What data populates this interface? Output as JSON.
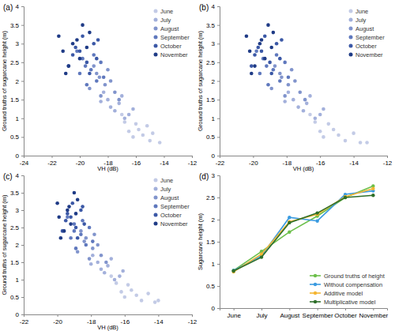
{
  "chart_data": [
    {
      "type": "scatter",
      "title": "(a)",
      "x_label": "VH (dB)",
      "y_label": "Ground truths of sugarcane height (m)",
      "xlim": [
        -24,
        -12
      ],
      "xticks": [
        -24,
        -22,
        -20,
        -18,
        -16,
        -14,
        -12
      ],
      "ylim": [
        0,
        4
      ],
      "yticks": [
        0,
        0.5,
        1,
        1.5,
        2,
        2.5,
        3,
        3.5,
        4
      ],
      "legend": "upper-right",
      "marker": "circle",
      "series": [
        {
          "name": "June",
          "color": "#c3cbe6",
          "x": [
            -16.2,
            -15.8,
            -15.0,
            -14.3,
            -16.8,
            -15.5,
            -17.0,
            -16.0,
            -14.8,
            -16.5,
            -15.2
          ],
          "values": [
            0.5,
            0.7,
            0.4,
            0.35,
            0.9,
            0.55,
            1.1,
            0.85,
            0.6,
            0.65,
            0.8
          ]
        },
        {
          "name": "July",
          "color": "#a3b0db",
          "x": [
            -17.5,
            -18.0,
            -16.8,
            -17.2,
            -18.3,
            -16.5,
            -17.8,
            -17.0,
            -16.2,
            -18.5
          ],
          "values": [
            1.2,
            1.5,
            1.0,
            1.4,
            1.7,
            1.1,
            1.3,
            1.6,
            1.25,
            1.45
          ]
        },
        {
          "name": "August",
          "color": "#8194cc",
          "x": [
            -18.2,
            -18.8,
            -17.5,
            -19.0,
            -18.5,
            -17.8,
            -19.3,
            -18.0,
            -17.2,
            -18.6
          ],
          "values": [
            1.9,
            2.2,
            1.7,
            2.4,
            1.6,
            2.0,
            1.8,
            2.3,
            1.5,
            2.1
          ]
        },
        {
          "name": "September",
          "color": "#5f78bd",
          "x": [
            -19.2,
            -19.8,
            -18.8,
            -20.2,
            -19.5,
            -18.5,
            -20.0,
            -19.0,
            -18.3,
            -19.6
          ],
          "values": [
            2.3,
            2.6,
            2.0,
            2.8,
            1.9,
            2.5,
            2.2,
            2.7,
            2.1,
            2.4
          ]
        },
        {
          "name": "October",
          "color": "#3b58a6",
          "x": [
            -19.5,
            -20.3,
            -19.0,
            -20.8,
            -19.8,
            -18.8,
            -20.5,
            -19.3,
            -18.7,
            -20.0
          ],
          "values": [
            2.5,
            2.9,
            3.0,
            2.4,
            3.2,
            2.6,
            2.7,
            2.2,
            3.1,
            2.8
          ]
        },
        {
          "name": "November",
          "color": "#1f3b86",
          "x": [
            -20.5,
            -21.2,
            -19.8,
            -20.0,
            -21.5,
            -19.5,
            -20.8,
            -19.3,
            -21.0,
            -20.2
          ],
          "values": [
            3.0,
            2.8,
            3.5,
            2.6,
            3.2,
            2.9,
            2.4,
            3.3,
            2.2,
            3.1
          ]
        }
      ]
    },
    {
      "type": "scatter",
      "title": "(b)",
      "x_label": "VH (dB)",
      "y_label": "Ground truths of sugarcane height (m)",
      "xlim": [
        -22,
        -12
      ],
      "xticks": [
        -22,
        -20,
        -18,
        -16,
        -14,
        -12
      ],
      "ylim": [
        0,
        4
      ],
      "yticks": [
        0,
        0.5,
        1,
        1.5,
        2,
        2.5,
        3,
        3.5,
        4
      ],
      "legend": "upper-right",
      "marker": "circle",
      "series": [
        {
          "name": "June",
          "color": "#c3cbe6",
          "x": [
            -15.8,
            -15.2,
            -14.5,
            -13.6,
            -16.3,
            -14.9,
            -16.6,
            -15.5,
            -14.0,
            -16.0,
            -13.2
          ],
          "values": [
            0.5,
            0.7,
            0.4,
            0.35,
            0.9,
            0.55,
            1.1,
            0.85,
            0.6,
            0.65,
            0.35
          ]
        },
        {
          "name": "July",
          "color": "#a3b0db",
          "x": [
            -17.0,
            -17.6,
            -16.3,
            -16.8,
            -17.9,
            -16.0,
            -17.3,
            -16.6,
            -15.8,
            -18.1
          ],
          "values": [
            1.2,
            1.5,
            1.0,
            1.4,
            1.7,
            1.1,
            1.3,
            1.6,
            1.25,
            1.45
          ]
        },
        {
          "name": "August",
          "color": "#8194cc",
          "x": [
            -17.9,
            -18.4,
            -17.2,
            -18.7,
            -18.1,
            -17.5,
            -18.9,
            -17.7,
            -16.9,
            -18.3
          ],
          "values": [
            1.9,
            2.2,
            1.7,
            2.4,
            1.6,
            2.0,
            1.8,
            2.3,
            1.5,
            2.1
          ]
        },
        {
          "name": "September",
          "color": "#5f78bd",
          "x": [
            -18.8,
            -19.4,
            -18.4,
            -19.8,
            -19.1,
            -18.1,
            -19.6,
            -18.6,
            -17.9,
            -19.2
          ],
          "values": [
            2.3,
            2.6,
            2.0,
            2.8,
            1.9,
            2.5,
            2.2,
            2.7,
            2.1,
            2.4
          ]
        },
        {
          "name": "October",
          "color": "#3b58a6",
          "x": [
            -19.0,
            -19.7,
            -18.6,
            -20.1,
            -19.3,
            -18.4,
            -19.9,
            -18.9,
            -18.3,
            -19.5
          ],
          "values": [
            2.5,
            2.9,
            3.0,
            2.4,
            3.2,
            2.6,
            2.7,
            2.2,
            3.1,
            2.8
          ]
        },
        {
          "name": "November",
          "color": "#1f3b86",
          "x": [
            -19.6,
            -20.2,
            -19.1,
            -19.3,
            -20.4,
            -18.9,
            -19.9,
            -18.8,
            -20.1,
            -19.5
          ],
          "values": [
            3.0,
            2.8,
            3.5,
            2.6,
            3.2,
            2.9,
            2.4,
            3.3,
            2.2,
            3.1
          ]
        }
      ]
    },
    {
      "type": "scatter",
      "title": "(c)",
      "x_label": "VH (dB)",
      "y_label": "Ground truths of sugarcane height (m)",
      "xlim": [
        -22,
        -12
      ],
      "xticks": [
        -22,
        -20,
        -18,
        -16,
        -14,
        -12
      ],
      "ylim": [
        0,
        4
      ],
      "yticks": [
        0,
        0.5,
        1,
        1.5,
        2,
        2.5,
        3,
        3.5,
        4
      ],
      "legend": "upper-right",
      "marker": "circle",
      "series": [
        {
          "name": "June",
          "color": "#c3cbe6",
          "x": [
            -16.0,
            -15.6,
            -15.0,
            -14.2,
            -16.5,
            -15.3,
            -16.8,
            -15.8,
            -14.6,
            -16.2,
            -14.0
          ],
          "values": [
            0.5,
            0.7,
            0.4,
            0.35,
            0.9,
            0.55,
            1.1,
            0.85,
            0.6,
            0.65,
            0.4
          ]
        },
        {
          "name": "July",
          "color": "#a3b0db",
          "x": [
            -17.2,
            -17.6,
            -16.6,
            -17.0,
            -17.9,
            -16.3,
            -17.4,
            -16.8,
            -16.1,
            -18.0
          ],
          "values": [
            1.2,
            1.5,
            1.0,
            1.4,
            1.7,
            1.1,
            1.3,
            1.6,
            1.25,
            1.45
          ]
        },
        {
          "name": "August",
          "color": "#8194cc",
          "x": [
            -17.9,
            -18.3,
            -17.4,
            -18.6,
            -18.1,
            -17.6,
            -18.8,
            -17.8,
            -17.1,
            -18.4
          ],
          "values": [
            1.9,
            2.2,
            1.7,
            2.4,
            1.6,
            2.0,
            1.8,
            2.3,
            1.5,
            2.1
          ]
        },
        {
          "name": "September",
          "color": "#5f78bd",
          "x": [
            -18.6,
            -19.0,
            -18.3,
            -19.4,
            -18.9,
            -18.1,
            -19.2,
            -18.5,
            -17.9,
            -19.0
          ],
          "values": [
            2.3,
            2.6,
            2.0,
            2.8,
            1.9,
            2.5,
            2.2,
            2.7,
            2.1,
            2.4
          ]
        },
        {
          "name": "October",
          "color": "#3b58a6",
          "x": [
            -18.9,
            -19.4,
            -18.6,
            -19.7,
            -19.1,
            -18.4,
            -19.5,
            -18.8,
            -18.5,
            -19.2
          ],
          "values": [
            2.5,
            2.9,
            3.0,
            2.4,
            3.2,
            2.6,
            2.7,
            2.2,
            3.1,
            2.8
          ]
        },
        {
          "name": "November",
          "color": "#1f3b86",
          "x": [
            -19.4,
            -19.9,
            -19.0,
            -19.2,
            -20.0,
            -18.9,
            -19.6,
            -18.8,
            -19.8,
            -19.3
          ],
          "values": [
            3.0,
            2.8,
            3.5,
            2.6,
            3.2,
            2.9,
            2.4,
            3.3,
            2.2,
            3.1
          ]
        }
      ]
    },
    {
      "type": "line",
      "title": "(d)",
      "y_label": "Sugarcane height (m)",
      "categories": [
        "June",
        "July",
        "August",
        "September",
        "October",
        "November"
      ],
      "ylim": [
        0,
        3
      ],
      "yticks": [
        0,
        0.5,
        1,
        1.5,
        2,
        2.5,
        3
      ],
      "legend": "lower-right",
      "marker": "circle",
      "series": [
        {
          "name": "Ground truths of height",
          "color": "#6cbf4a",
          "values": [
            0.85,
            1.28,
            1.72,
            2.08,
            2.5,
            2.76
          ]
        },
        {
          "name": "Without compensation",
          "color": "#3b9be0",
          "values": [
            0.85,
            1.18,
            2.05,
            1.97,
            2.57,
            2.65
          ]
        },
        {
          "name": "Additive model",
          "color": "#f4b532",
          "values": [
            0.82,
            1.22,
            1.95,
            2.12,
            2.52,
            2.7
          ]
        },
        {
          "name": "Multiplicative model",
          "color": "#2f6f2a",
          "values": [
            0.84,
            1.15,
            1.93,
            2.15,
            2.5,
            2.55
          ]
        }
      ]
    }
  ]
}
